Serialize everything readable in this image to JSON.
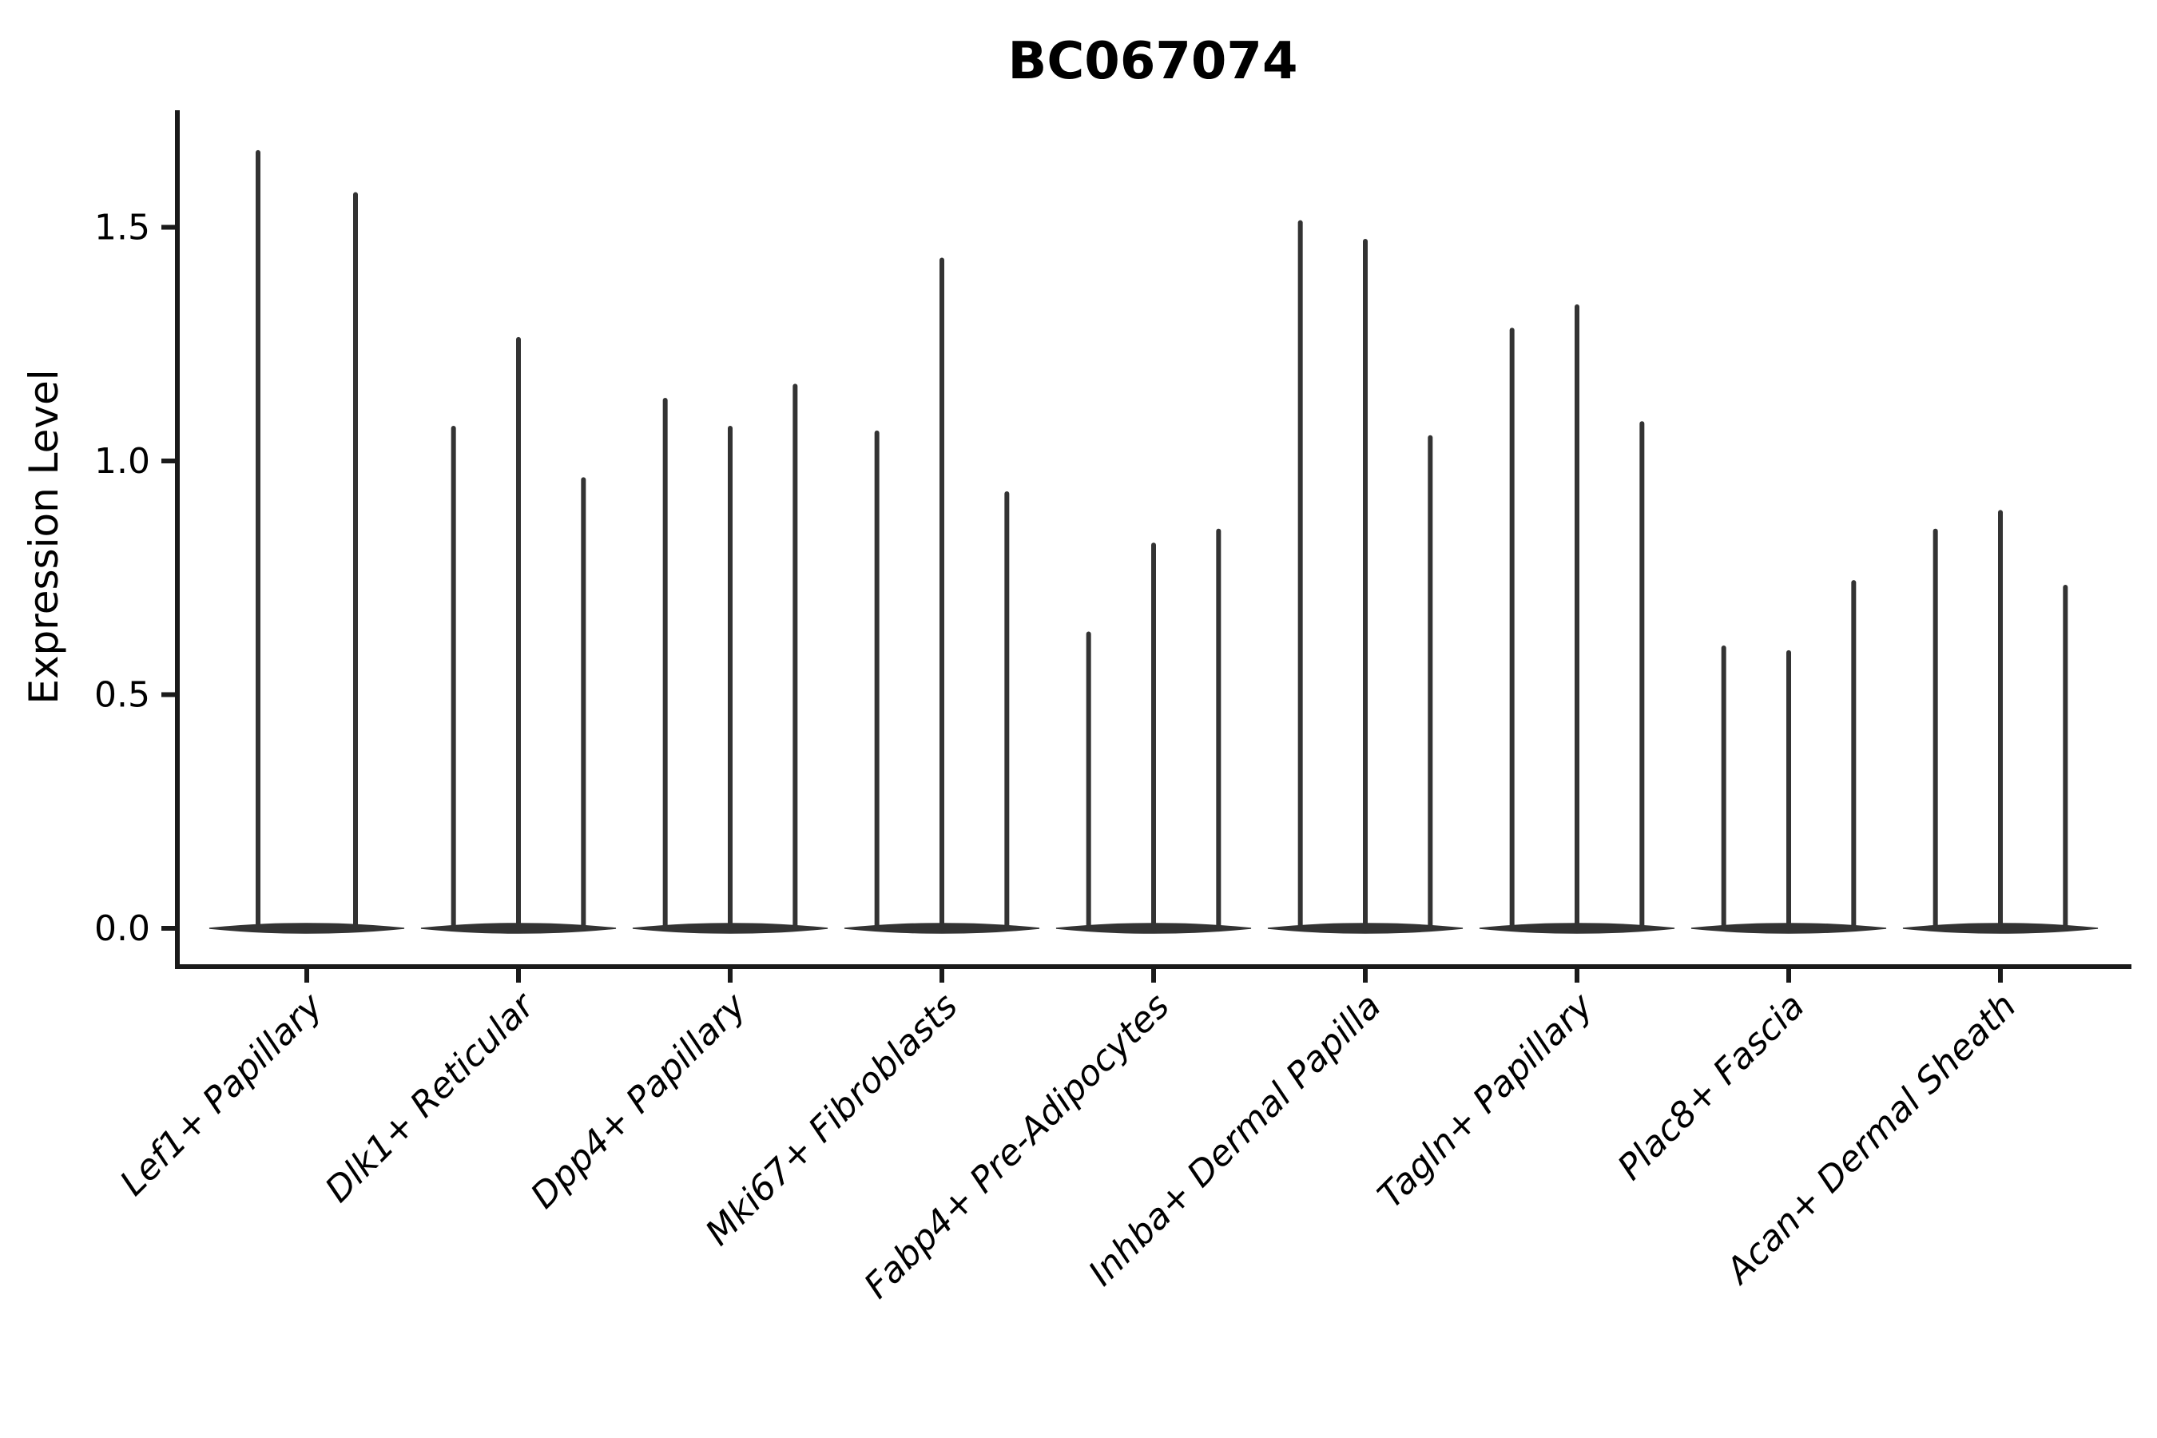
{
  "chart_data": {
    "type": "violin",
    "title": "BC067074",
    "ylabel": "Expression Level",
    "xlabel": "",
    "legend": "none",
    "grid": false,
    "background_color": "#ffffff",
    "violin_color": "#333333",
    "axis_color": "#1a1a1a",
    "yticks": [
      0.0,
      0.5,
      1.0,
      1.5
    ],
    "ylim": [
      -0.08,
      1.75
    ],
    "x_label_rotation_deg": 45,
    "baseline_value": 0.0,
    "groups": [
      {
        "label": "Lef1+ Papillary",
        "violin_max_values": [
          1.66,
          1.57
        ]
      },
      {
        "label": "Dlk1+ Reticular",
        "violin_max_values": [
          1.07,
          1.26,
          0.96
        ]
      },
      {
        "label": "Dpp4+ Papillary",
        "violin_max_values": [
          1.13,
          1.07,
          1.16
        ]
      },
      {
        "label": "Mki67+ Fibroblasts",
        "violin_max_values": [
          1.06,
          1.43,
          0.93
        ]
      },
      {
        "label": "Fabp4+ Pre-Adipocytes",
        "violin_max_values": [
          0.63,
          0.82,
          0.85
        ]
      },
      {
        "label": "Inhba+ Dermal Papilla",
        "violin_max_values": [
          1.51,
          1.47,
          1.05
        ]
      },
      {
        "label": "Tagln+ Papillary",
        "violin_max_values": [
          1.28,
          1.33,
          1.08
        ]
      },
      {
        "label": "Plac8+ Fascia",
        "violin_max_values": [
          0.6,
          0.59,
          0.74
        ]
      },
      {
        "label": "Acan+ Dermal Sheath",
        "violin_max_values": [
          0.85,
          0.89,
          0.73
        ]
      }
    ]
  }
}
